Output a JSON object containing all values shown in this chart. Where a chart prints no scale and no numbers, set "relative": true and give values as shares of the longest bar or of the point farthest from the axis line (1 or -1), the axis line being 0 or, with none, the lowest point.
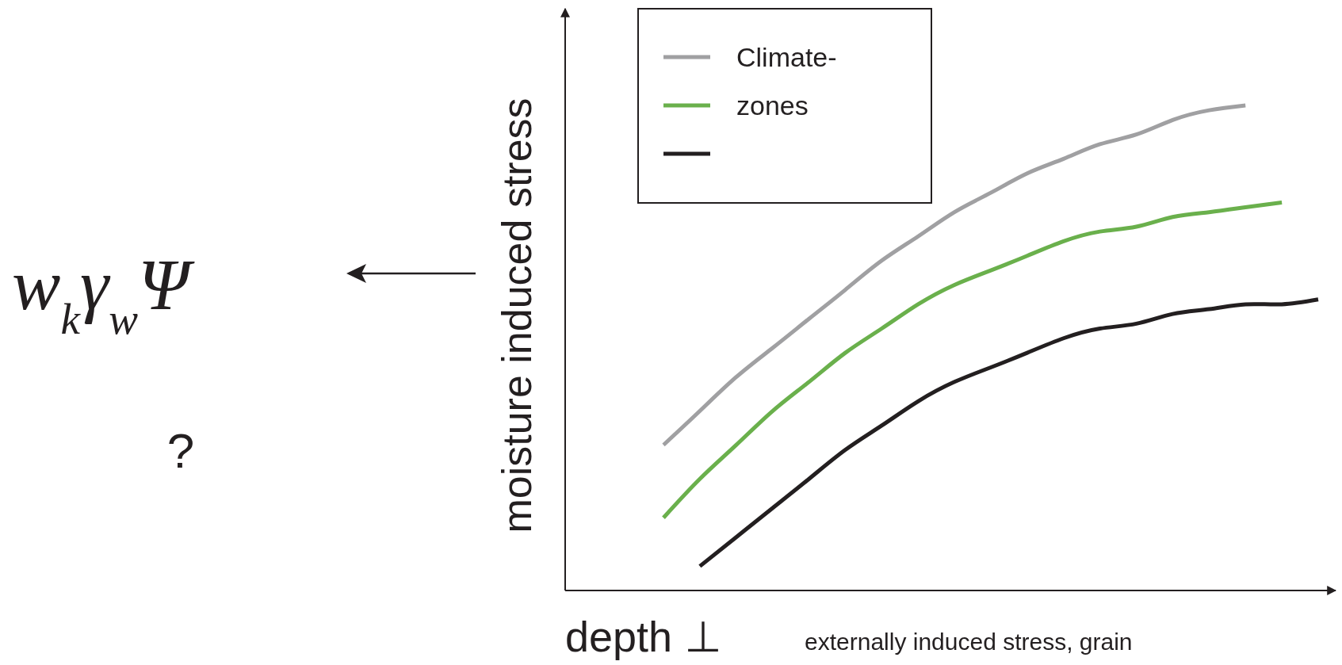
{
  "chart_data": {
    "type": "line",
    "relative": true,
    "xlabel": "depth ⊥",
    "ylabel": "moisture induced stress",
    "legend": "top left",
    "line_style": "solid",
    "marker": "none",
    "categories": [
      null,
      null,
      null,
      null,
      null,
      null,
      null,
      null,
      null,
      null,
      null,
      null,
      null,
      null,
      null,
      null,
      null,
      null,
      null
    ],
    "series": [
      {
        "name": "Climate-",
        "color": "#a0a0a2",
        "values": [
          0.3,
          0.37,
          0.44,
          0.5,
          0.56,
          0.62,
          0.68,
          0.73,
          0.78,
          0.82,
          0.86,
          0.89,
          0.92,
          0.94,
          0.97,
          0.99,
          1,
          null,
          null
        ]
      },
      {
        "name": "zones",
        "color": "#6ab04c",
        "values": [
          0.15,
          0.23,
          0.3,
          0.37,
          0.43,
          0.49,
          0.54,
          0.59,
          0.63,
          0.66,
          0.69,
          0.72,
          0.74,
          0.75,
          0.77,
          0.78,
          0.79,
          0.8,
          null
        ]
      },
      {
        "color": "#231f20",
        "values": [
          null,
          0.05,
          0.11,
          0.17,
          0.23,
          0.29,
          0.34,
          0.39,
          0.43,
          0.46,
          0.49,
          0.52,
          0.54,
          0.55,
          0.57,
          0.58,
          0.59,
          0.59,
          0.6
        ]
      }
    ],
    "annotations": [
      "externally induced stress, grain",
      "w$_{k}$γ$_{w}$Ψ",
      "?"
    ]
  }
}
